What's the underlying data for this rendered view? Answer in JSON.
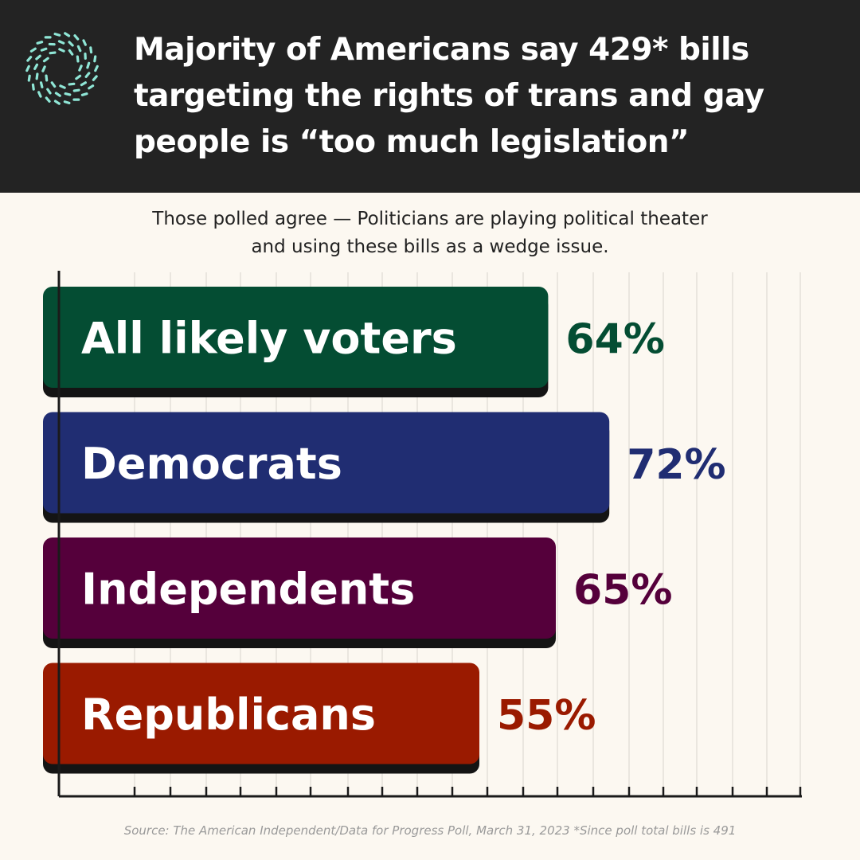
{
  "header": {
    "title_lines": [
      "Majority of Americans say 429* bills",
      "targeting the rights of trans and gay",
      "people is “too much legislation”"
    ]
  },
  "subtitle_lines": [
    "Those polled agree — Politicians are playing political theater",
    "and using these bills as a wedge issue."
  ],
  "source": "Source: The American Independent/Data for Progress Poll, March 31, 2023 *Since poll total bills is 491",
  "colors": {
    "background": "#fcf8f1",
    "header_bg": "#232323",
    "logo": "#8fe6d6",
    "grid": "#e4e0d9",
    "shadow": "#141414"
  },
  "icons": {
    "logo": "circular-dash-logo-icon"
  },
  "chart_data": {
    "type": "bar",
    "orientation": "horizontal",
    "categories": [
      "All likely voters",
      "Democrats",
      "Independents",
      "Republicans"
    ],
    "values": [
      64,
      72,
      65,
      55
    ],
    "value_labels": [
      "64%",
      "72%",
      "65%",
      "55%"
    ],
    "colors": [
      "#044d33",
      "#202d72",
      "#55003b",
      "#9a1a00"
    ],
    "unit": "%",
    "xlim": [
      0,
      100
    ],
    "grid": true,
    "legend": "none"
  }
}
